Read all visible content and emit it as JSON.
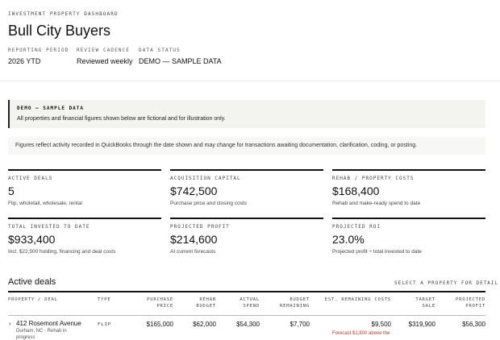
{
  "header": {
    "eyebrow": "INVESTMENT PROPERTY DASHBOARD",
    "title": "Bull City Buyers",
    "meta": [
      {
        "key": "REPORTING PERIOD",
        "value": "2026 YTD"
      },
      {
        "key": "REVIEW CADENCE",
        "value": "Reviewed weekly"
      },
      {
        "key": "DATA STATUS",
        "value": "DEMO — SAMPLE DATA"
      }
    ]
  },
  "demo_callout": {
    "heading": "DEMO — SAMPLE DATA",
    "body": "All properties and financial figures shown below are fictional and for illustration only."
  },
  "notice": "Figures reflect activity recorded in QuickBooks through the date shown and may change for transactions awaiting documentation, clarification, coding, or posting.",
  "kpis": [
    {
      "label": "ACTIVE DEALS",
      "value": "5",
      "sub": "Flip, wholetail, wholesale, rental"
    },
    {
      "label": "ACQUISITION CAPITAL",
      "value": "$742,500",
      "sub": "Purchase price and closing costs"
    },
    {
      "label": "REHAB / PROPERTY COSTS",
      "value": "$168,400",
      "sub": "Rehab and make-ready spend to date"
    },
    {
      "label": "TOTAL INVESTED TO DATE",
      "value": "$933,400",
      "sub": "Incl. $22,500 holding, financing and deal costs"
    },
    {
      "label": "PROJECTED PROFIT",
      "value": "$214,600",
      "sub": "At current forecasts"
    },
    {
      "label": "PROJECTED ROI",
      "value": "23.0%",
      "sub": "Projected profit ÷ total invested to date"
    }
  ],
  "deals": {
    "title": "Active deals",
    "hint": "SELECT A PROPERTY FOR DETAIL",
    "columns": [
      {
        "l1": "PROPERTY / DEAL",
        "l2": ""
      },
      {
        "l1": "TYPE",
        "l2": ""
      },
      {
        "l1": "PURCHASE",
        "l2": "PRICE"
      },
      {
        "l1": "REHAB",
        "l2": "BUDGET"
      },
      {
        "l1": "ACTUAL",
        "l2": "SPEND"
      },
      {
        "l1": "BUDGET",
        "l2": "REMAINING"
      },
      {
        "l1": "EST. REMAINING COSTS",
        "l2": ""
      },
      {
        "l1": "TARGET",
        "l2": "SALE"
      },
      {
        "l1": "PROJECTED",
        "l2": "PROFIT"
      }
    ],
    "rows": [
      {
        "chevron": "›",
        "address": "412 Rosemont Avenue",
        "location": "Durham, NC · Rehab in",
        "location_cont": "progress",
        "type": "FLIP",
        "purchase_price": "$165,000",
        "rehab_budget": "$62,000",
        "actual_spend": "$54,300",
        "budget_remaining": "$7,700",
        "est_remaining_costs": "$9,500",
        "target_sale": "$319,900",
        "projected_profit": "$56,300",
        "warning": "Forecast $1,800 above the"
      }
    ]
  },
  "colors": {
    "accent_rule": "#111111",
    "panel_bg": "#f3f3f0",
    "warning": "#c0392b"
  }
}
